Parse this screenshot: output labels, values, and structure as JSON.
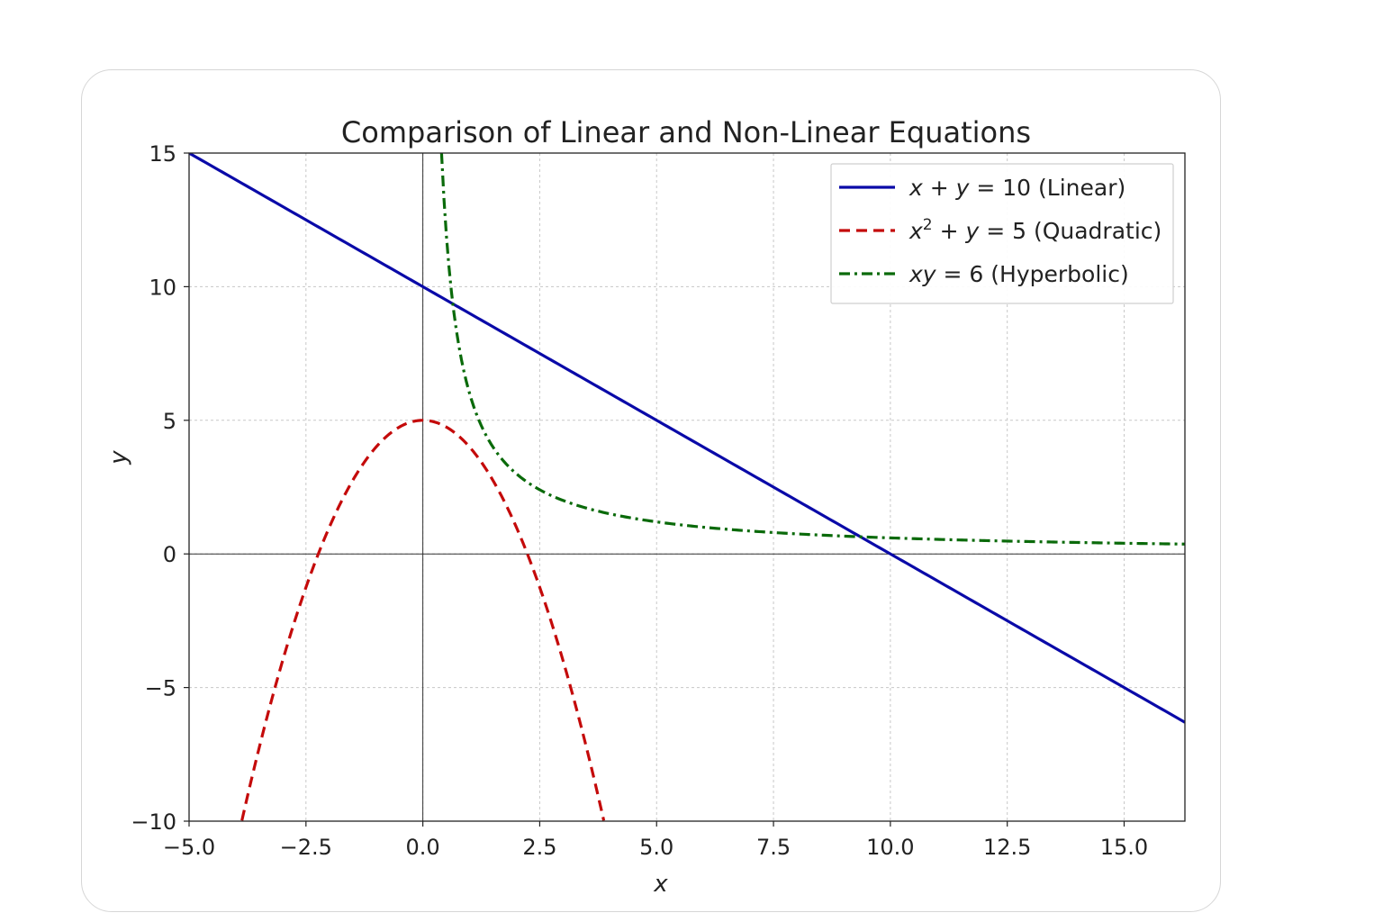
{
  "chart_data": {
    "type": "line",
    "title": "Comparison of Linear and Non-Linear Equations",
    "xlabel": "x",
    "ylabel": "y",
    "xlim": [
      -5.0,
      16.3
    ],
    "ylim": [
      -10,
      15
    ],
    "x_ticks": [
      "−5.0",
      "−2.5",
      "0.0",
      "2.5",
      "5.0",
      "7.5",
      "10.0",
      "12.5",
      "15.0"
    ],
    "x_tick_values": [
      -5.0,
      -2.5,
      0.0,
      2.5,
      5.0,
      7.5,
      10.0,
      12.5,
      15.0
    ],
    "y_ticks": [
      "15",
      "10",
      "5",
      "0",
      "−5",
      "−10"
    ],
    "y_tick_values": [
      15,
      10,
      5,
      0,
      -5,
      -10
    ],
    "grid": true,
    "legend_position": "top-right",
    "series": [
      {
        "name": "x + y = 10 (Linear)",
        "legend_parts": [
          "x",
          " + ",
          "y",
          " = 10 (Linear)"
        ],
        "color": "#0a0aa8",
        "style": "solid",
        "x": [
          -5.0,
          0.0,
          5.0,
          10.0,
          16.3
        ],
        "y": [
          15.0,
          10.0,
          5.0,
          0.0,
          -6.3
        ]
      },
      {
        "name": "x² + y = 5 (Quadratic)",
        "legend_parts": [
          "x",
          "2",
          " + ",
          "y",
          " = 5 (Quadratic)"
        ],
        "color": "#c40a0a",
        "style": "dashed",
        "x": [
          -3.87,
          -3.5,
          -3.0,
          -2.5,
          -2.0,
          -1.5,
          -1.0,
          -0.5,
          0.0,
          0.5,
          1.0,
          1.5,
          2.0,
          2.5,
          3.0,
          3.5,
          3.87
        ],
        "y": [
          -10.0,
          -7.25,
          -4.0,
          -1.25,
          1.0,
          2.75,
          4.0,
          4.75,
          5.0,
          4.75,
          4.0,
          2.75,
          1.0,
          -1.25,
          -4.0,
          -7.25,
          -10.0
        ]
      },
      {
        "name": "xy = 6 (Hyperbolic)",
        "legend_parts": [
          "xy",
          " = 6 (Hyperbolic)"
        ],
        "color": "#0a6a0a",
        "style": "dashdot",
        "x": [
          0.4,
          0.5,
          0.6,
          0.75,
          1.0,
          1.25,
          1.5,
          2.0,
          2.5,
          3.0,
          4.0,
          5.0,
          6.0,
          8.0,
          10.0,
          12.0,
          14.0,
          16.3
        ],
        "y": [
          15.0,
          12.0,
          10.0,
          8.0,
          6.0,
          4.8,
          4.0,
          3.0,
          2.4,
          2.0,
          1.5,
          1.2,
          1.0,
          0.75,
          0.6,
          0.5,
          0.43,
          0.37
        ]
      }
    ]
  }
}
